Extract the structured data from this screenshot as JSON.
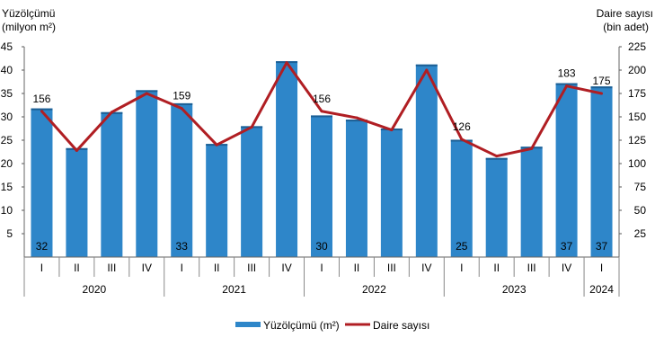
{
  "chart_data": {
    "type": "bar",
    "left_axis_title_line1": "Yüzölçümü",
    "left_axis_title_line2": "(milyon m²)",
    "right_axis_title_line1": "Daire sayısı",
    "right_axis_title_line2": "(bin adet)",
    "y_left_range": [
      0,
      45
    ],
    "y_left_ticks": [
      "5",
      "10",
      "15",
      "20",
      "25",
      "30",
      "35",
      "40",
      "45"
    ],
    "y_right_range": [
      0,
      225
    ],
    "y_right_ticks": [
      "25",
      "50",
      "75",
      "100",
      "125",
      "150",
      "175",
      "200",
      "225"
    ],
    "categories": [
      "I",
      "II",
      "III",
      "IV",
      "I",
      "II",
      "III",
      "IV",
      "I",
      "II",
      "III",
      "IV",
      "I",
      "II",
      "III",
      "IV",
      "I"
    ],
    "years": [
      {
        "label": "2020",
        "quarters": 4
      },
      {
        "label": "2021",
        "quarters": 4
      },
      {
        "label": "2022",
        "quarters": 4
      },
      {
        "label": "2023",
        "quarters": 4
      },
      {
        "label": "2024",
        "quarters": 1
      }
    ],
    "series": [
      {
        "name": "Yüzölçümü (m²)",
        "type": "bar",
        "axis": "left",
        "color": "#2e86c9",
        "values": [
          31.8,
          23.3,
          31.0,
          35.7,
          32.9,
          24.2,
          28.0,
          41.9,
          30.3,
          29.4,
          27.5,
          41.2,
          25.1,
          21.2,
          23.6,
          37.2,
          36.5
        ],
        "labels": [
          "32",
          "",
          "",
          "",
          "33",
          "",
          "",
          "",
          "30",
          "",
          "",
          "",
          "25",
          "",
          "",
          "37",
          "37"
        ]
      },
      {
        "name": "Daire sayısı",
        "type": "line",
        "axis": "right",
        "color": "#b01e23",
        "values": [
          156,
          114,
          155,
          175,
          159,
          120,
          139,
          208,
          156,
          149,
          136,
          200,
          126,
          108,
          116,
          183,
          175
        ],
        "labels": [
          "156",
          "",
          "",
          "",
          "159",
          "",
          "",
          "",
          "156",
          "",
          "",
          "",
          "126",
          "",
          "",
          "183",
          "175"
        ]
      }
    ],
    "legend_position": "bottom",
    "grid": false
  }
}
